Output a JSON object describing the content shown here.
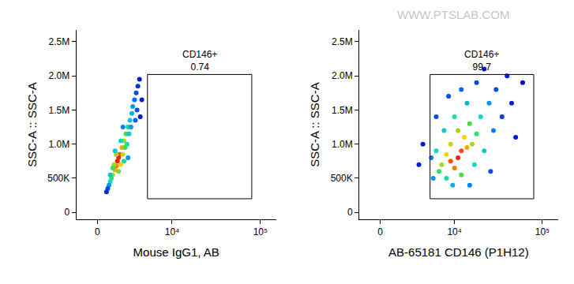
{
  "chart_data": [
    {
      "type": "scatter",
      "x_label": "Mouse IgG1, AB",
      "y_label": "SSC-A :: SSC-A",
      "xlim": [
        -1700,
        150000
      ],
      "ylim": [
        -100000,
        2670000
      ],
      "xticks": [
        0,
        {
          "value": 10000,
          "label": "10⁴"
        },
        {
          "value": 100000,
          "label": "10⁵"
        }
      ],
      "yticks": [
        0,
        {
          "value": 500000,
          "label": "500K"
        },
        {
          "value": 1000000,
          "label": "1.0M"
        },
        {
          "value": 1500000,
          "label": "1.5M"
        },
        {
          "value": 2000000,
          "label": "2.0M"
        },
        {
          "value": 2500000,
          "label": "2.5M"
        }
      ],
      "x": [
        1600,
        1800,
        1500,
        2000,
        1400,
        1700,
        1900,
        1300,
        2100,
        2200,
        1200,
        1100,
        2400,
        2600,
        1000,
        2300,
        1500,
        2800,
        3000,
        3100,
        900,
        1700,
        2500,
        1200,
        3300,
        3500,
        3700,
        800,
        2700,
        1900,
        2900,
        3600,
        3400,
        1000,
        2200,
        1400,
        3900,
        700,
        4200,
        4000,
        2100,
        2600
      ],
      "y": [
        750000,
        850000,
        680000,
        950000,
        620000,
        800000,
        700000,
        700000,
        850000,
        1050000,
        550000,
        500000,
        1150000,
        1250000,
        450000,
        950000,
        850000,
        1350000,
        1450000,
        1550000,
        400000,
        600000,
        1000000,
        650000,
        1650000,
        1750000,
        1850000,
        350000,
        1150000,
        1050000,
        1250000,
        1500000,
        1350000,
        550000,
        750000,
        900000,
        1950000,
        300000,
        1650000,
        1400000,
        1250000,
        800000
      ],
      "density": [
        1,
        0.95,
        0.9,
        0.85,
        0.85,
        1,
        0.8,
        0.7,
        0.75,
        0.7,
        0.7,
        0.55,
        0.6,
        0.5,
        0.45,
        0.6,
        0.7,
        0.4,
        0.35,
        0.3,
        0.3,
        0.65,
        0.5,
        0.55,
        0.2,
        0.15,
        0.1,
        0.15,
        0.4,
        0.45,
        0.3,
        0.15,
        0.2,
        0.4,
        0.5,
        0.4,
        0.05,
        0.08,
        0.05,
        0.05,
        0.25,
        0.3
      ],
      "gate": {
        "label": "CD146+",
        "value": 0.74,
        "x": [
          5000,
          80000
        ],
        "y": [
          200000,
          2020000
        ]
      }
    },
    {
      "type": "scatter",
      "x_label": "AB-65181 CD146 (P1H12)",
      "y_label": "SSC-A :: SSC-A",
      "watermark": "WWW.PTSLAB.COM",
      "xlim": [
        -1700,
        150000
      ],
      "ylim": [
        -100000,
        2670000
      ],
      "xticks": [
        0,
        {
          "value": 10000,
          "label": "10⁴"
        },
        {
          "value": 100000,
          "label": "10⁵"
        }
      ],
      "yticks": [
        0,
        {
          "value": 500000,
          "label": "500K"
        },
        {
          "value": 1000000,
          "label": "1.0M"
        },
        {
          "value": 1500000,
          "label": "1.5M"
        },
        {
          "value": 2000000,
          "label": "2.0M"
        },
        {
          "value": 2500000,
          "label": "2.5M"
        }
      ],
      "x": [
        11000,
        12000,
        9000,
        14000,
        10000,
        8000,
        13000,
        16000,
        7000,
        11000,
        9000,
        15000,
        18000,
        6500,
        12000,
        20000,
        8000,
        22000,
        6000,
        10000,
        17000,
        25000,
        14000,
        7500,
        28000,
        5500,
        9500,
        30000,
        18000,
        35000,
        12000,
        5200,
        40000,
        45000,
        6000,
        15000,
        22000,
        3500,
        50000,
        4000,
        26000,
        8500,
        60000
      ],
      "y": [
        800000,
        900000,
        750000,
        950000,
        650000,
        850000,
        1100000,
        1000000,
        700000,
        1200000,
        1000000,
        1300000,
        1150000,
        600000,
        550000,
        1400000,
        500000,
        900000,
        900000,
        1400000,
        700000,
        1600000,
        1600000,
        1200000,
        1200000,
        500000,
        400000,
        1800000,
        1900000,
        1400000,
        1800000,
        800000,
        2000000,
        1600000,
        1400000,
        400000,
        2100000,
        700000,
        1100000,
        1000000,
        600000,
        1700000,
        1900000
      ],
      "density": [
        1,
        0.95,
        0.95,
        0.85,
        0.9,
        0.8,
        0.8,
        0.7,
        0.7,
        0.7,
        0.75,
        0.6,
        0.55,
        0.55,
        0.6,
        0.45,
        0.5,
        0.4,
        0.45,
        0.5,
        0.45,
        0.3,
        0.35,
        0.4,
        0.25,
        0.3,
        0.35,
        0.15,
        0.15,
        0.12,
        0.2,
        0.25,
        0.05,
        0.05,
        0.15,
        0.25,
        0.05,
        0.05,
        0.05,
        0.05,
        0.15,
        0.15,
        0.03
      ],
      "gate": {
        "label": "CD146+",
        "value": 99.7,
        "x": [
          5000,
          80000
        ],
        "y": [
          200000,
          2020000
        ]
      }
    }
  ]
}
